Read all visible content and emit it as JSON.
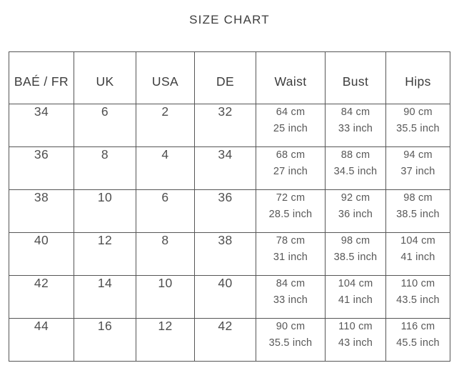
{
  "page": {
    "title": "SIZE CHART"
  },
  "chart_data": {
    "type": "table",
    "title": "SIZE CHART",
    "columns": [
      "BAÉ / FR",
      "UK",
      "USA",
      "DE",
      "Waist",
      "Bust",
      "Hips"
    ],
    "rows": [
      [
        "34",
        "6",
        "2",
        "32",
        [
          "64 cm",
          "25 inch"
        ],
        [
          "84 cm",
          "33 inch"
        ],
        [
          "90 cm",
          "35.5 inch"
        ]
      ],
      [
        "36",
        "8",
        "4",
        "34",
        [
          "68 cm",
          "27 inch"
        ],
        [
          "88 cm",
          "34.5 inch"
        ],
        [
          "94 cm",
          "37 inch"
        ]
      ],
      [
        "38",
        "10",
        "6",
        "36",
        [
          "72 cm",
          "28.5 inch"
        ],
        [
          "92 cm",
          "36 inch"
        ],
        [
          "98 cm",
          "38.5 inch"
        ]
      ],
      [
        "40",
        "12",
        "8",
        "38",
        [
          "78 cm",
          "31 inch"
        ],
        [
          "98 cm",
          "38.5 inch"
        ],
        [
          "104 cm",
          "41 inch"
        ]
      ],
      [
        "42",
        "14",
        "10",
        "40",
        [
          "84 cm",
          "33 inch"
        ],
        [
          "104 cm",
          "41 inch"
        ],
        [
          "110 cm",
          "43.5 inch"
        ]
      ],
      [
        "44",
        "16",
        "12",
        "42",
        [
          "90 cm",
          "35.5 inch"
        ],
        [
          "110 cm",
          "43 inch"
        ],
        [
          "116 cm",
          "45.5 inch"
        ]
      ]
    ],
    "colors": {
      "text": "#4f4f4f",
      "border": "#565656",
      "background": "#ffffff"
    },
    "layout": {
      "grid": true,
      "measurement_columns": [
        "Waist",
        "Bust",
        "Hips"
      ]
    }
  }
}
